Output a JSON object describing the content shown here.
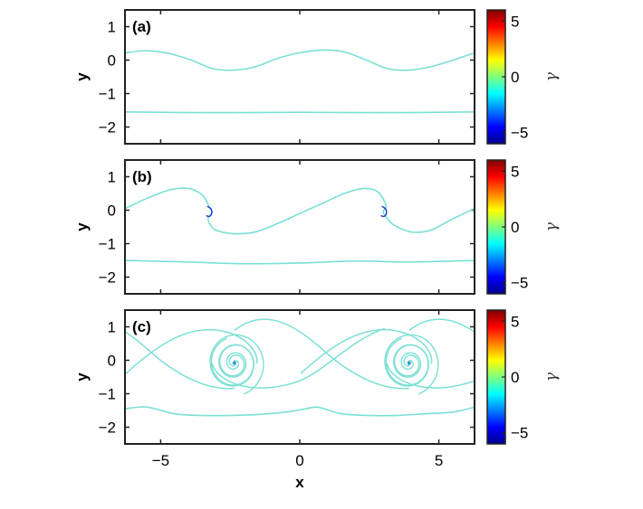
{
  "chart_data": [
    {
      "type": "line",
      "panel_label": "(a)",
      "ylabel": "y",
      "xlim": [
        -6.283,
        6.283
      ],
      "ylim": [
        -2.5,
        1.5
      ],
      "xticks": [
        "−5",
        "0",
        "5"
      ],
      "yticks": [
        "1",
        "0",
        "−1",
        "−2"
      ],
      "show_xtick_labels": false,
      "xlabel": "",
      "series": [
        {
          "role": "upper-interface",
          "x": [
            -6.28,
            -5.5,
            -4.7,
            -3.9,
            -3.14,
            -2.4,
            -1.6,
            -0.8,
            0,
            0.8,
            1.57,
            2.4,
            3.14,
            3.9,
            4.7,
            5.5,
            6.28
          ],
          "y": [
            0.22,
            0.28,
            0.2,
            0.0,
            -0.25,
            -0.3,
            -0.2,
            0.05,
            0.22,
            0.3,
            0.25,
            0.0,
            -0.25,
            -0.3,
            -0.2,
            0.0,
            0.22
          ]
        },
        {
          "role": "lower-interface",
          "x": [
            -6.28,
            -3.14,
            0,
            3.14,
            6.28
          ],
          "y": [
            -1.55,
            -1.57,
            -1.56,
            -1.57,
            -1.55
          ]
        }
      ],
      "colorbar": {
        "min": -6,
        "max": 6,
        "ticks": [
          "5",
          "0",
          "−5"
        ],
        "label": "γ"
      }
    },
    {
      "type": "line",
      "panel_label": "(b)",
      "ylabel": "y",
      "xlim": [
        -6.283,
        6.283
      ],
      "ylim": [
        -2.5,
        1.5
      ],
      "xticks": [
        "−5",
        "0",
        "5"
      ],
      "yticks": [
        "1",
        "0",
        "−1",
        "−2"
      ],
      "show_xtick_labels": false,
      "xlabel": "",
      "series": [
        {
          "role": "upper-interface-rolling",
          "x": [
            -6.28,
            -5.5,
            -4.7,
            -4.0,
            -3.5,
            -3.25,
            -3.15,
            -3.3,
            -3.2,
            -3.0,
            -2.4,
            -1.6,
            -0.8,
            0,
            0.8,
            1.6,
            2.3,
            2.8,
            3.1,
            3.0,
            3.15,
            3.4,
            4.0,
            4.7,
            5.4,
            6.28
          ],
          "y": [
            0.05,
            0.35,
            0.6,
            0.65,
            0.45,
            0.1,
            -0.05,
            -0.25,
            -0.45,
            -0.6,
            -0.7,
            -0.65,
            -0.4,
            -0.1,
            0.2,
            0.5,
            0.65,
            0.55,
            0.15,
            -0.05,
            -0.25,
            -0.45,
            -0.65,
            -0.6,
            -0.3,
            0.05
          ]
        },
        {
          "role": "lower-interface",
          "x": [
            -6.28,
            -4,
            -2,
            0,
            2,
            4,
            6.28
          ],
          "y": [
            -1.5,
            -1.55,
            -1.6,
            -1.58,
            -1.52,
            -1.55,
            -1.5
          ]
        }
      ],
      "colorbar": {
        "min": -6,
        "max": 6,
        "ticks": [
          "5",
          "0",
          "−5"
        ],
        "label": "γ"
      }
    },
    {
      "type": "line",
      "panel_label": "(c)",
      "ylabel": "y",
      "xlim": [
        -6.283,
        6.283
      ],
      "ylim": [
        -2.5,
        1.5
      ],
      "xticks": [
        "−5",
        "0",
        "5"
      ],
      "yticks": [
        "1",
        "0",
        "−1",
        "−2"
      ],
      "show_xtick_labels": true,
      "xlabel": "x",
      "vortex_centers": [
        [
          -2.35,
          -0.08
        ],
        [
          3.93,
          -0.08
        ]
      ],
      "series": [
        {
          "role": "upper-interface-spiral",
          "x": [
            -6.28,
            -5.5,
            -4.5,
            -3.5,
            -3.0,
            -2.5,
            6.28
          ],
          "y": [
            -0.4,
            0.2,
            0.8,
            0.95,
            0.7,
            0.3,
            -0.4
          ]
        },
        {
          "role": "lower-interface",
          "x": [
            -6.28,
            -5.5,
            -4.5,
            -3.5,
            -2.5,
            -1.5,
            -0.5,
            0.2,
            0.6,
            1.0,
            1.5,
            2.5,
            3.5,
            4.5,
            5.5,
            6.28
          ],
          "y": [
            -1.45,
            -1.4,
            -1.6,
            -1.65,
            -1.65,
            -1.62,
            -1.55,
            -1.45,
            -1.4,
            -1.48,
            -1.6,
            -1.65,
            -1.65,
            -1.6,
            -1.55,
            -1.4
          ]
        }
      ],
      "colorbar": {
        "min": -6,
        "max": 6,
        "ticks": [
          "5",
          "0",
          "−5"
        ],
        "label": "γ"
      }
    }
  ]
}
